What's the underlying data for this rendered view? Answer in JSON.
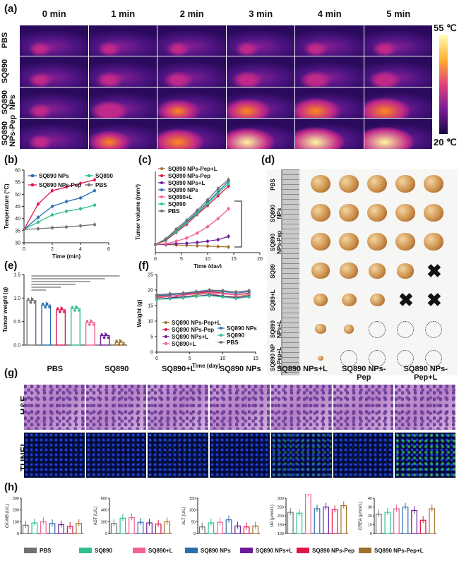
{
  "panel_letters": {
    "a": "(a)",
    "b": "(b)",
    "c": "(c)",
    "d": "(d)",
    "e": "(e)",
    "f": "(f)",
    "g": "(g)",
    "h": "(h)"
  },
  "thermal": {
    "time_headers": [
      "0 min",
      "1 min",
      "2 min",
      "3 min",
      "4 min",
      "5 min"
    ],
    "row_labels": [
      "PBS",
      "SQ890",
      "SQ890\nNPs",
      "SQ890\nNPs-Pep"
    ],
    "scale_max": "55 ℃",
    "scale_min": "20 ℃",
    "intensity": [
      [
        0.08,
        0.09,
        0.1,
        0.1,
        0.11,
        0.12
      ],
      [
        0.1,
        0.18,
        0.22,
        0.26,
        0.28,
        0.3
      ],
      [
        0.1,
        0.45,
        0.6,
        0.7,
        0.75,
        0.8
      ],
      [
        0.1,
        0.6,
        0.78,
        0.88,
        0.94,
        0.98
      ]
    ],
    "colors": {
      "dark": "#2a0a5c",
      "mid": "#c0288a",
      "hot": "#ff8a1c",
      "max": "#fff7a0"
    }
  },
  "chart_data": [
    {
      "id": "b",
      "type": "line",
      "xlabel": "Time (min)",
      "ylabel": "Temperature (°C)",
      "xlim": [
        0,
        6
      ],
      "ylim": [
        30,
        60
      ],
      "xticks": [
        0,
        2,
        4,
        6
      ],
      "yticks": [
        30,
        35,
        40,
        45,
        50,
        55,
        60
      ],
      "x": [
        0,
        1,
        2,
        3,
        4,
        5
      ],
      "series": [
        {
          "name": "SQ890 NPs",
          "color": "#2b6cb0",
          "marker": "circle",
          "values": [
            35.5,
            40.5,
            45,
            47,
            48.5,
            51.5
          ]
        },
        {
          "name": "SQ890",
          "color": "#2ebf8e",
          "marker": "triangle",
          "values": [
            35.5,
            38.5,
            41.5,
            43,
            44,
            45.5
          ]
        },
        {
          "name": "SQ890 NPs-Pep",
          "color": "#e2134a",
          "marker": "square",
          "values": [
            35.5,
            46,
            51.5,
            53,
            54.5,
            56
          ]
        },
        {
          "name": "PBS",
          "color": "#707070",
          "marker": "triangle-down",
          "values": [
            35.5,
            35.8,
            36.2,
            36.5,
            37,
            37.5
          ]
        }
      ]
    },
    {
      "id": "c",
      "type": "line",
      "xlabel": "Time (day)",
      "ylabel": "Tumor volume (mm³)",
      "xlim": [
        0,
        20
      ],
      "xticks": [
        0,
        5,
        10,
        15,
        20
      ],
      "ylim": [
        0,
        1000
      ],
      "x": [
        0,
        2,
        4,
        6,
        8,
        10,
        12,
        14
      ],
      "series": [
        {
          "name": "SQ890 NPs-Pep+L",
          "color": "#a0712b",
          "values": [
            100,
            100,
            95,
            90,
            85,
            80,
            75,
            70
          ]
        },
        {
          "name": "SQ890 NPs-Pep",
          "color": "#e2134a",
          "values": [
            100,
            150,
            250,
            350,
            470,
            580,
            700,
            820
          ]
        },
        {
          "name": "SQ890 NPs+L",
          "color": "#6a1b9a",
          "values": [
            100,
            100,
            110,
            115,
            125,
            140,
            160,
            200
          ]
        },
        {
          "name": "SQ890 NPs",
          "color": "#2b6cb0",
          "values": [
            100,
            160,
            270,
            380,
            500,
            620,
            750,
            880
          ]
        },
        {
          "name": "SQ890+L",
          "color": "#f06292",
          "values": [
            100,
            110,
            140,
            180,
            240,
            320,
            420,
            540
          ]
        },
        {
          "name": "SQ890",
          "color": "#2ebf8e",
          "values": [
            100,
            160,
            260,
            370,
            480,
            600,
            730,
            850
          ]
        },
        {
          "name": "PBS",
          "color": "#707070",
          "values": [
            100,
            170,
            290,
            400,
            520,
            650,
            790,
            900
          ]
        }
      ]
    },
    {
      "id": "e",
      "type": "bar",
      "ylabel": "Tumor weight (g)",
      "ylim": [
        0,
        1.5
      ],
      "yticks": [
        0.0,
        0.5,
        1.0,
        1.5
      ],
      "categories": [
        "PBS",
        "SQ890",
        "SQ890+L",
        "SQ890 NPs",
        "SQ890+L NPs",
        "SQ890 NPs-Pep",
        "SQ890 NPs-Pep+L"
      ],
      "values": [
        0.95,
        0.85,
        0.75,
        0.78,
        0.48,
        0.2,
        0.06
      ],
      "colors": [
        "#707070",
        "#2b6cb0",
        "#e2134a",
        "#2ebf8e",
        "#f06292",
        "#6a1b9a",
        "#a0712b"
      ]
    },
    {
      "id": "f",
      "type": "line",
      "xlabel": "Time (day)",
      "ylabel": "Weight (g)",
      "xlim": [
        0,
        15
      ],
      "xticks": [
        0,
        5,
        10,
        15
      ],
      "ylim": [
        0,
        25
      ],
      "yticks": [
        0,
        5,
        10,
        15,
        20,
        25
      ],
      "x": [
        0,
        2,
        4,
        6,
        8,
        10,
        12,
        14
      ],
      "series": [
        {
          "name": "SQ890 NPs-Pep+L",
          "color": "#a0712b",
          "values": [
            18,
            18.2,
            17.5,
            18.5,
            19,
            18,
            17.8,
            18.5
          ]
        },
        {
          "name": "SQ890 NPs-Pep",
          "color": "#e2134a",
          "values": [
            17.5,
            18,
            18.5,
            19,
            19.5,
            19,
            18.5,
            19
          ]
        },
        {
          "name": "SQ890 NPs+L",
          "color": "#6a1b9a",
          "values": [
            17,
            17.5,
            17.8,
            18,
            18.5,
            18,
            17.5,
            18
          ]
        },
        {
          "name": "SQ890+L",
          "color": "#f06292",
          "values": [
            17.8,
            18,
            18.3,
            18.8,
            19.2,
            18.8,
            18.4,
            18.8
          ]
        },
        {
          "name": "SQ890 NPs",
          "color": "#2b6cb0",
          "values": [
            18.2,
            18.5,
            18.8,
            19.3,
            19.8,
            19.5,
            19,
            19.5
          ]
        },
        {
          "name": "SQ890",
          "color": "#2ebf8e",
          "values": [
            17,
            17.2,
            17.5,
            18,
            18.2,
            17.8,
            17.3,
            17.8
          ]
        },
        {
          "name": "PBS",
          "color": "#707070",
          "values": [
            18.5,
            18.8,
            19,
            19.5,
            20,
            19.8,
            19.4,
            19.8
          ]
        }
      ]
    },
    {
      "id": "h",
      "type": "bar",
      "groups": [
        {
          "ylabel": "CK-MB (U/L)",
          "ylim": [
            0,
            300
          ],
          "yticks": [
            0,
            100,
            200,
            300
          ],
          "values": [
            70,
            90,
            100,
            85,
            75,
            60,
            85
          ]
        },
        {
          "ylabel": "AST (U/L)",
          "ylim": [
            0,
            600
          ],
          "yticks": [
            0,
            200,
            400,
            600
          ],
          "values": [
            170,
            260,
            270,
            190,
            180,
            160,
            200
          ]
        },
        {
          "ylabel": "ALT (U/L)",
          "ylim": [
            0,
            150
          ],
          "yticks": [
            0,
            50,
            100,
            150
          ],
          "values": [
            28,
            45,
            48,
            58,
            32,
            28,
            32
          ]
        },
        {
          "ylabel": "UA (μmol/L)",
          "ylim": [
            100,
            300
          ],
          "yticks": [
            100,
            150,
            200,
            250,
            300
          ],
          "values": [
            220,
            215,
            325,
            240,
            250,
            235,
            258
          ]
        },
        {
          "ylabel": "CREA (μmol/L)",
          "ylim": [
            0,
            40
          ],
          "yticks": [
            0,
            10,
            20,
            30,
            40
          ],
          "values": [
            22,
            24,
            28,
            30,
            26,
            15,
            28
          ]
        }
      ],
      "colors": [
        "#707070",
        "#2ebf8e",
        "#f06292",
        "#2b6cb0",
        "#6a1b9a",
        "#e2134a",
        "#a0712b"
      ],
      "legend": [
        "PBS",
        "SQ890",
        "SQ890+L",
        "SQ890 NPs",
        "SQ890 NPs+L",
        "SQ890 NPs-Pep",
        "SQ890 NPs-Pep+L"
      ]
    }
  ],
  "tumor_photo": {
    "row_labels": [
      "PBS",
      "SQ890\nNPs",
      "SQ890\nNPs-Pep",
      "SQ89",
      "SQ89+L",
      "SQ890\nNPs+L",
      "SQ890 NP\ns-Pep+L"
    ],
    "marks": [
      [
        "t",
        "t",
        "t",
        "t",
        "t"
      ],
      [
        "t",
        "t",
        "t",
        "t",
        "t"
      ],
      [
        "t",
        "t",
        "t",
        "t",
        "t"
      ],
      [
        "t",
        "t",
        "t",
        "t",
        "x"
      ],
      [
        "t",
        "t",
        "t",
        "x",
        "x"
      ],
      [
        "t",
        "t",
        "o",
        "o",
        "o"
      ],
      [
        "t",
        "o",
        "o",
        "o",
        "o"
      ]
    ],
    "sizes": [
      [
        1,
        1,
        1,
        1,
        1
      ],
      [
        1,
        1,
        1,
        1,
        1
      ],
      [
        1,
        1,
        1,
        1,
        1
      ],
      [
        0.9,
        0.9,
        0.85,
        0.85,
        0
      ],
      [
        0.7,
        0.75,
        0.75,
        0,
        0
      ],
      [
        0.55,
        0.5,
        0,
        0,
        0
      ],
      [
        0.3,
        0,
        0,
        0,
        0
      ]
    ]
  },
  "histology": {
    "column_headers": [
      "PBS",
      "SQ890",
      "SQ890+L",
      "SQ890 NPs",
      "SQ890 NPs+L",
      "SQ890 NPs-\nPep",
      "SQ890 NPs-\nPep+L"
    ],
    "row_labels": [
      "H&E",
      "TUNEL"
    ],
    "tunel_positive": [
      0.03,
      0.04,
      0.06,
      0.03,
      0.2,
      0.05,
      0.35
    ]
  }
}
